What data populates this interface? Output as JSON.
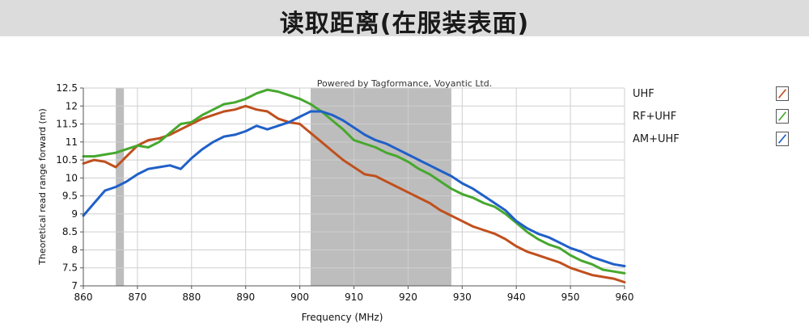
{
  "banner": {
    "title": "读取距离(在服装表面)"
  },
  "chart_data": {
    "type": "line",
    "watermark": "Powered by Tagformance, Voyantic Ltd.",
    "xlabel": "Frequency (MHz)",
    "ylabel": "Theoretical read range forward (m)",
    "xlim": [
      860,
      960
    ],
    "ylim": [
      7,
      12.5
    ],
    "x_ticks": [
      "860",
      "870",
      "880",
      "890",
      "900",
      "910",
      "920",
      "930",
      "940",
      "950",
      "960"
    ],
    "y_ticks": [
      "7",
      "7.5",
      "8",
      "8.5",
      "9",
      "9.5",
      "10",
      "10.5",
      "11",
      "11.5",
      "12",
      "12.5"
    ],
    "grid": true,
    "shaded_bands": [
      {
        "from": 866,
        "to": 867.5,
        "color": "#bdbdbd"
      },
      {
        "from": 902,
        "to": 928,
        "color": "#bdbdbd"
      }
    ],
    "legend_position": "right",
    "series": [
      {
        "name": "UHF",
        "color": "#c0501e",
        "x": [
          860,
          862,
          864,
          866,
          868,
          870,
          872,
          874,
          876,
          878,
          880,
          882,
          884,
          886,
          888,
          890,
          892,
          894,
          896,
          898,
          900,
          902,
          904,
          906,
          908,
          910,
          912,
          914,
          916,
          918,
          920,
          922,
          924,
          926,
          928,
          930,
          932,
          934,
          936,
          938,
          940,
          942,
          944,
          946,
          948,
          950,
          952,
          954,
          956,
          958,
          960
        ],
        "values": [
          10.4,
          10.5,
          10.45,
          10.3,
          10.6,
          10.9,
          11.05,
          11.1,
          11.2,
          11.35,
          11.5,
          11.65,
          11.75,
          11.85,
          11.9,
          12.0,
          11.9,
          11.85,
          11.65,
          11.55,
          11.5,
          11.25,
          11.0,
          10.75,
          10.5,
          10.3,
          10.1,
          10.05,
          9.9,
          9.75,
          9.6,
          9.45,
          9.3,
          9.1,
          8.95,
          8.8,
          8.65,
          8.55,
          8.45,
          8.3,
          8.1,
          7.95,
          7.85,
          7.75,
          7.65,
          7.5,
          7.4,
          7.3,
          7.25,
          7.2,
          7.1
        ]
      },
      {
        "name": "RF+UHF",
        "color": "#46a82e",
        "x": [
          860,
          862,
          864,
          866,
          868,
          870,
          872,
          874,
          876,
          878,
          880,
          882,
          884,
          886,
          888,
          890,
          892,
          894,
          896,
          898,
          900,
          902,
          904,
          906,
          908,
          910,
          912,
          914,
          916,
          918,
          920,
          922,
          924,
          926,
          928,
          930,
          932,
          934,
          936,
          938,
          940,
          942,
          944,
          946,
          948,
          950,
          952,
          954,
          956,
          958,
          960
        ],
        "values": [
          10.6,
          10.6,
          10.65,
          10.7,
          10.8,
          10.9,
          10.85,
          11.0,
          11.25,
          11.5,
          11.55,
          11.75,
          11.9,
          12.05,
          12.1,
          12.2,
          12.35,
          12.45,
          12.4,
          12.3,
          12.2,
          12.05,
          11.85,
          11.6,
          11.35,
          11.05,
          10.95,
          10.85,
          10.7,
          10.6,
          10.45,
          10.25,
          10.1,
          9.9,
          9.7,
          9.55,
          9.45,
          9.3,
          9.2,
          9.0,
          8.75,
          8.5,
          8.3,
          8.15,
          8.05,
          7.85,
          7.7,
          7.6,
          7.45,
          7.4,
          7.35
        ]
      },
      {
        "name": "AM+UHF",
        "color": "#2060c8",
        "x": [
          860,
          862,
          864,
          866,
          868,
          870,
          872,
          874,
          876,
          878,
          880,
          882,
          884,
          886,
          888,
          890,
          892,
          894,
          896,
          898,
          900,
          902,
          904,
          906,
          908,
          910,
          912,
          914,
          916,
          918,
          920,
          922,
          924,
          926,
          928,
          930,
          932,
          934,
          936,
          938,
          940,
          942,
          944,
          946,
          948,
          950,
          952,
          954,
          956,
          958,
          960
        ],
        "values": [
          8.95,
          9.3,
          9.65,
          9.75,
          9.9,
          10.1,
          10.25,
          10.3,
          10.35,
          10.25,
          10.55,
          10.8,
          11.0,
          11.15,
          11.2,
          11.3,
          11.45,
          11.35,
          11.45,
          11.55,
          11.7,
          11.85,
          11.85,
          11.75,
          11.6,
          11.4,
          11.2,
          11.05,
          10.95,
          10.8,
          10.65,
          10.5,
          10.35,
          10.2,
          10.05,
          9.85,
          9.7,
          9.5,
          9.3,
          9.1,
          8.8,
          8.6,
          8.45,
          8.35,
          8.2,
          8.05,
          7.95,
          7.8,
          7.7,
          7.6,
          7.55
        ]
      }
    ]
  }
}
